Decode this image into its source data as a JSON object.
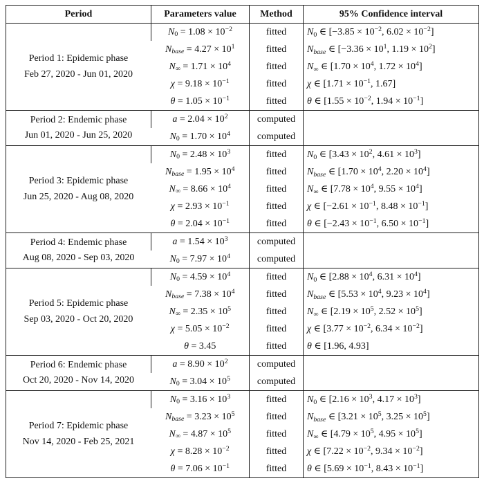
{
  "table": {
    "headers": [
      "Period",
      "Parameters value",
      "Method",
      "95% Confidence interval"
    ],
    "method_values": [
      "fitted",
      "computed"
    ],
    "border_color": "#1a1a1a",
    "periods": [
      {
        "label": "Period 1: Epidemic phase",
        "dates": "Feb 27, 2020 - Jun 01, 2020",
        "rows": [
          {
            "param": "*N*_{0} = 1.08 × 10^{−2}",
            "method": "fitted",
            "ci": "*N*_{0} ∈ [−3.85 × 10^{−2}, 6.02 × 10^{−2}]"
          },
          {
            "param": "*N*_{*base*} = 4.27 × 10^{1}",
            "method": "fitted",
            "ci": "*N*_{*base*} ∈ [−3.36 × 10^{1}, 1.19 × 10^{2}]"
          },
          {
            "param": "*N*_{∞} = 1.71 × 10^{4}",
            "method": "fitted",
            "ci": "*N*_{∞} ∈ [1.70 × 10^{4}, 1.72 × 10^{4}]"
          },
          {
            "param": "*χ* = 9.18 × 10^{−1}",
            "method": "fitted",
            "ci": "*χ* ∈ [1.71 × 10^{−1}, 1.67]"
          },
          {
            "param": "*θ* = 1.05 × 10^{−1}",
            "method": "fitted",
            "ci": "*θ* ∈ [1.55 × 10^{−2}, 1.94 × 10^{−1}]"
          }
        ]
      },
      {
        "label": "Period 2: Endemic phase",
        "dates": "Jun 01, 2020 - Jun 25, 2020",
        "rows": [
          {
            "param": "*a* = 2.04 × 10^{2}",
            "method": "computed",
            "ci": ""
          },
          {
            "param": "*N*_{0} = 1.70 × 10^{4}",
            "method": "computed",
            "ci": ""
          }
        ]
      },
      {
        "label": "Period 3: Epidemic phase",
        "dates": "Jun 25, 2020 - Aug 08, 2020",
        "rows": [
          {
            "param": "*N*_{0} = 2.48 × 10^{3}",
            "method": "fitted",
            "ci": "*N*_{0} ∈ [3.43 × 10^{2}, 4.61 × 10^{3}]"
          },
          {
            "param": "*N*_{*base*} = 1.95 × 10^{4}",
            "method": "fitted",
            "ci": "*N*_{*base*} ∈ [1.70 × 10^{4}, 2.20 × 10^{4}]"
          },
          {
            "param": "*N*_{∞} = 8.66 × 10^{4}",
            "method": "fitted",
            "ci": "*N*_{∞} ∈ [7.78 × 10^{4}, 9.55 × 10^{4}]"
          },
          {
            "param": "*χ* = 2.93 × 10^{−1}",
            "method": "fitted",
            "ci": "*χ* ∈ [−2.61 × 10^{−1}, 8.48 × 10^{−1}]"
          },
          {
            "param": "*θ* = 2.04 × 10^{−1}",
            "method": "fitted",
            "ci": "*θ* ∈ [−2.43 × 10^{−1}, 6.50 × 10^{−1}]"
          }
        ]
      },
      {
        "label": "Period 4: Endemic phase",
        "dates": "Aug 08, 2020 - Sep 03, 2020",
        "rows": [
          {
            "param": "*a* = 1.54 × 10^{3}",
            "method": "computed",
            "ci": ""
          },
          {
            "param": "*N*_{0} = 7.97 × 10^{4}",
            "method": "computed",
            "ci": ""
          }
        ]
      },
      {
        "label": "Period 5: Epidemic phase",
        "dates": "Sep 03, 2020 - Oct 20, 2020",
        "rows": [
          {
            "param": "*N*_{0} = 4.59 × 10^{4}",
            "method": "fitted",
            "ci": "*N*_{0} ∈ [2.88 × 10^{4}, 6.31 × 10^{4}]"
          },
          {
            "param": "*N*_{*base*} = 7.38 × 10^{4}",
            "method": "fitted",
            "ci": "*N*_{*base*} ∈ [5.53 × 10^{4}, 9.23 × 10^{4}]"
          },
          {
            "param": "*N*_{∞} = 2.35 × 10^{5}",
            "method": "fitted",
            "ci": "*N*_{∞} ∈ [2.19 × 10^{5}, 2.52 × 10^{5}]"
          },
          {
            "param": "*χ* = 5.05 × 10^{−2}",
            "method": "fitted",
            "ci": "*χ* ∈ [3.77 × 10^{−2}, 6.34 × 10^{−2}]"
          },
          {
            "param": "*θ* = 3.45",
            "method": "fitted",
            "ci": "*θ* ∈ [1.96, 4.93]"
          }
        ]
      },
      {
        "label": "Period 6: Endemic phase",
        "dates": "Oct 20, 2020 - Nov 14, 2020",
        "rows": [
          {
            "param": "*a* = 8.90 × 10^{2}",
            "method": "computed",
            "ci": ""
          },
          {
            "param": "*N*_{0} = 3.04 × 10^{5}",
            "method": "computed",
            "ci": ""
          }
        ]
      },
      {
        "label": "Period 7: Epidemic phase",
        "dates": "Nov 14, 2020 - Feb 25, 2021",
        "rows": [
          {
            "param": "*N*_{0} = 3.16 × 10^{3}",
            "method": "fitted",
            "ci": "*N*_{0} ∈ [2.16 × 10^{3}, 4.17 × 10^{3}]"
          },
          {
            "param": "*N*_{*base*} = 3.23 × 10^{5}",
            "method": "fitted",
            "ci": "*N*_{*base*} ∈ [3.21 × 10^{5}, 3.25 × 10^{5}]"
          },
          {
            "param": "*N*_{∞} = 4.87 × 10^{5}",
            "method": "fitted",
            "ci": "*N*_{∞} ∈ [4.79 × 10^{5}, 4.95 × 10^{5}]"
          },
          {
            "param": "*χ* = 8.28 × 10^{−2}",
            "method": "fitted",
            "ci": "*χ* ∈ [7.22 × 10^{−2}, 9.34 × 10^{−2}]"
          },
          {
            "param": "*θ* = 7.06 × 10^{−1}",
            "method": "fitted",
            "ci": "*θ* ∈ [5.69 × 10^{−1}, 8.43 × 10^{−1}]"
          }
        ]
      }
    ]
  }
}
